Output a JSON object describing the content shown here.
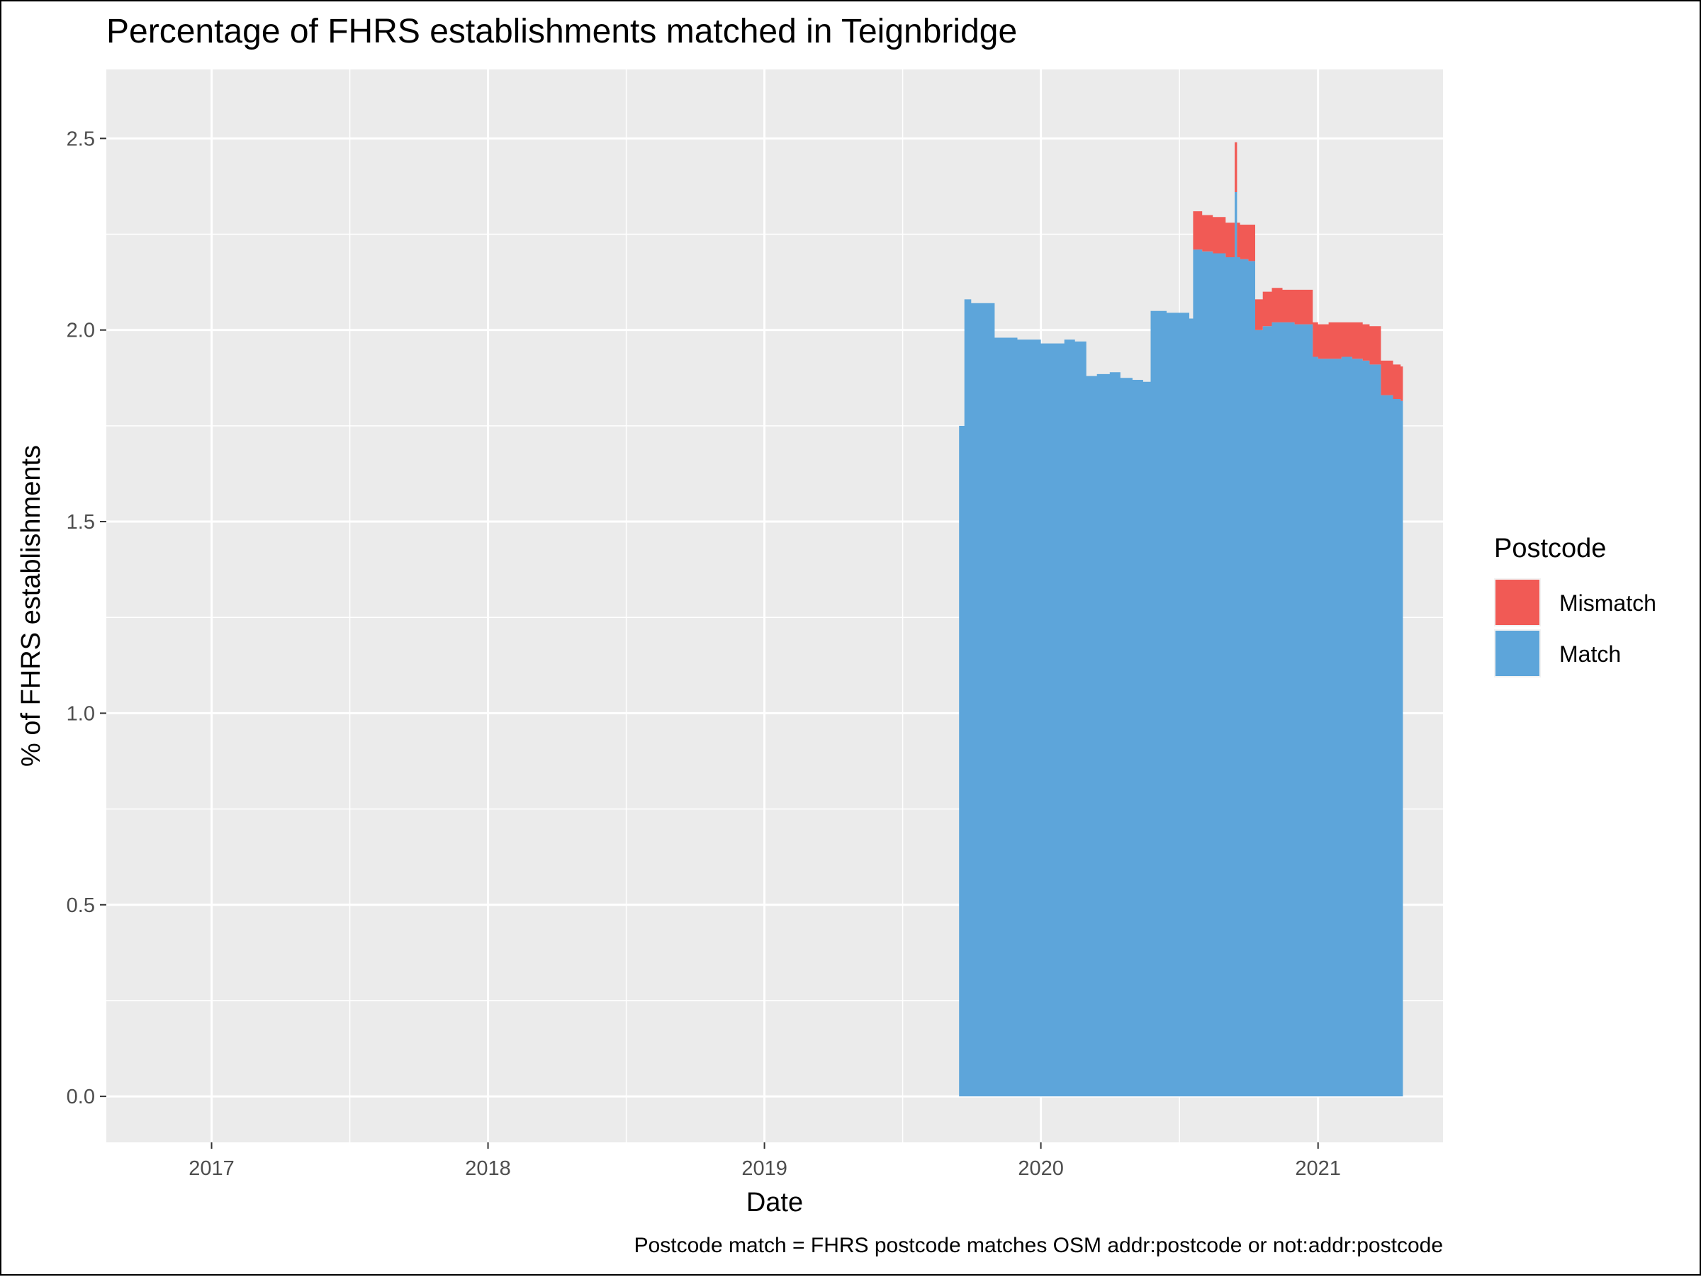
{
  "chart_data": {
    "type": "area",
    "stacked": true,
    "title": "Percentage of FHRS establishments matched in Teignbridge",
    "xlabel": "Date",
    "ylabel": "% of FHRS establishments",
    "caption": "Postcode match = FHRS postcode matches OSM addr:postcode or not:addr:postcode",
    "xlim": [
      "2016-08-15",
      "2021-06-15"
    ],
    "ylim": [
      -0.12,
      2.68
    ],
    "x_ticks": [
      "2017",
      "2018",
      "2019",
      "2020",
      "2021"
    ],
    "x_tick_dates": [
      "2017-01-01",
      "2018-01-01",
      "2019-01-01",
      "2020-01-01",
      "2021-01-01"
    ],
    "y_ticks": [
      "0.0",
      "0.5",
      "1.0",
      "1.5",
      "2.0",
      "2.5"
    ],
    "y_tick_values": [
      0,
      0.5,
      1.0,
      1.5,
      2.0,
      2.5
    ],
    "grid": true,
    "legend": {
      "title": "Postcode",
      "position": "right",
      "entries": [
        {
          "label": "Mismatch",
          "color": "#F15A55"
        },
        {
          "label": "Match",
          "color": "#5DA5DA"
        }
      ]
    },
    "x": [
      "2019-09-15",
      "2019-09-22",
      "2019-10-01",
      "2019-10-15",
      "2019-11-01",
      "2019-11-08",
      "2019-12-01",
      "2020-01-01",
      "2020-02-01",
      "2020-02-15",
      "2020-03-01",
      "2020-03-15",
      "2020-04-01",
      "2020-04-15",
      "2020-05-01",
      "2020-05-15",
      "2020-05-25",
      "2020-06-01",
      "2020-06-15",
      "2020-07-01",
      "2020-07-15",
      "2020-07-20",
      "2020-08-01",
      "2020-08-15",
      "2020-09-01",
      "2020-09-10",
      "2020-09-13",
      "2020-09-16",
      "2020-09-20",
      "2020-10-01",
      "2020-10-10",
      "2020-10-20",
      "2020-11-01",
      "2020-11-15",
      "2020-12-01",
      "2020-12-15",
      "2020-12-25",
      "2021-01-01",
      "2021-01-15",
      "2021-02-01",
      "2021-02-15",
      "2021-03-01",
      "2021-03-10",
      "2021-03-25",
      "2021-04-10",
      "2021-04-20"
    ],
    "series": [
      {
        "name": "Match",
        "color": "#5DA5DA",
        "values": [
          1.75,
          2.08,
          2.07,
          2.07,
          1.98,
          1.98,
          1.975,
          1.965,
          1.975,
          1.97,
          1.88,
          1.885,
          1.89,
          1.875,
          1.87,
          1.865,
          2.05,
          2.05,
          2.045,
          2.045,
          2.03,
          2.21,
          2.205,
          2.2,
          2.19,
          2.19,
          2.36,
          2.19,
          2.185,
          2.18,
          2.0,
          2.01,
          2.02,
          2.02,
          2.015,
          2.015,
          1.93,
          1.925,
          1.925,
          1.93,
          1.925,
          1.92,
          1.91,
          1.83,
          1.82,
          1.815
        ]
      },
      {
        "name": "Mismatch",
        "color": "#F15A55",
        "values": [
          0,
          0,
          0,
          0,
          0,
          0,
          0,
          0,
          0,
          0,
          0,
          0,
          0,
          0,
          0,
          0,
          0,
          0,
          0,
          0,
          0,
          0.1,
          0.095,
          0.095,
          0.09,
          0.09,
          0.13,
          0.09,
          0.09,
          0.095,
          0.08,
          0.09,
          0.09,
          0.085,
          0.09,
          0.09,
          0.09,
          0.09,
          0.095,
          0.09,
          0.095,
          0.095,
          0.1,
          0.09,
          0.09,
          0.09
        ]
      }
    ]
  }
}
